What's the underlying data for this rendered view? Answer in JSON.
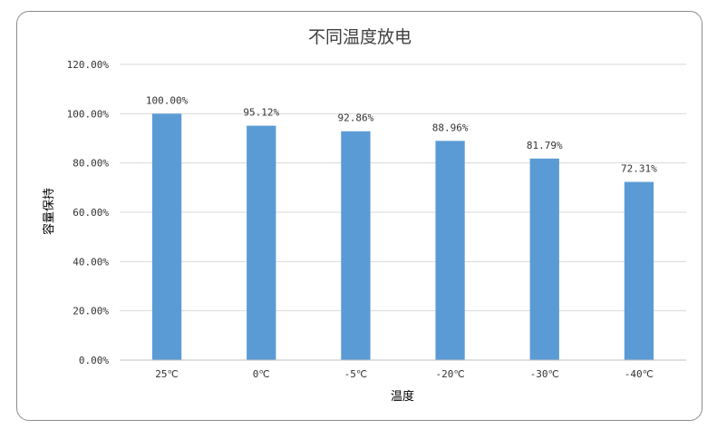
{
  "chart_data": {
    "type": "bar",
    "title": "不同温度放电",
    "xlabel": "温度",
    "ylabel": "容量保持",
    "categories": [
      "25℃",
      "0℃",
      "-5℃",
      "-20℃",
      "-30℃",
      "-40℃"
    ],
    "values": [
      100.0,
      95.12,
      92.86,
      88.96,
      81.79,
      72.31
    ],
    "data_labels": [
      "100.00%",
      "95.12%",
      "92.86%",
      "88.96%",
      "81.79%",
      "72.31%"
    ],
    "ylim": [
      0,
      120
    ],
    "yticks": [
      0,
      20,
      40,
      60,
      80,
      100,
      120
    ],
    "ytick_labels": [
      "0.00%",
      "20.00%",
      "40.00%",
      "60.00%",
      "80.00%",
      "100.00%",
      "120.00%"
    ],
    "grid": true,
    "legend": "none",
    "bar_color": "#5b9bd5"
  }
}
